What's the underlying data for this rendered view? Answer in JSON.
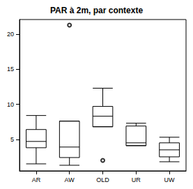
{
  "chart_data": {
    "type": "boxplot",
    "title": "PAR à 2m, par contexte",
    "categories": [
      "AR",
      "AW",
      "OLD",
      "UR",
      "UW"
    ],
    "values": [
      [
        1.5,
        3.8,
        4.7,
        6.4,
        8.4
      ],
      [
        1.3,
        2.4,
        3.9,
        7.6,
        7.6
      ],
      [
        6.8,
        6.8,
        8.3,
        9.7,
        12.3
      ],
      [
        4.1,
        4.1,
        4.5,
        6.9,
        7.3
      ],
      [
        1.8,
        2.5,
        3.5,
        4.5,
        5.3
      ]
    ],
    "outliers": [
      {
        "category": "AW",
        "value": 21.3
      },
      {
        "category": "OLD",
        "value": 2.0
      }
    ],
    "color": "#000000",
    "ylim": [
      0.5,
      22.1
    ],
    "yticks": [
      5,
      10,
      15,
      20
    ],
    "grid": false
  }
}
